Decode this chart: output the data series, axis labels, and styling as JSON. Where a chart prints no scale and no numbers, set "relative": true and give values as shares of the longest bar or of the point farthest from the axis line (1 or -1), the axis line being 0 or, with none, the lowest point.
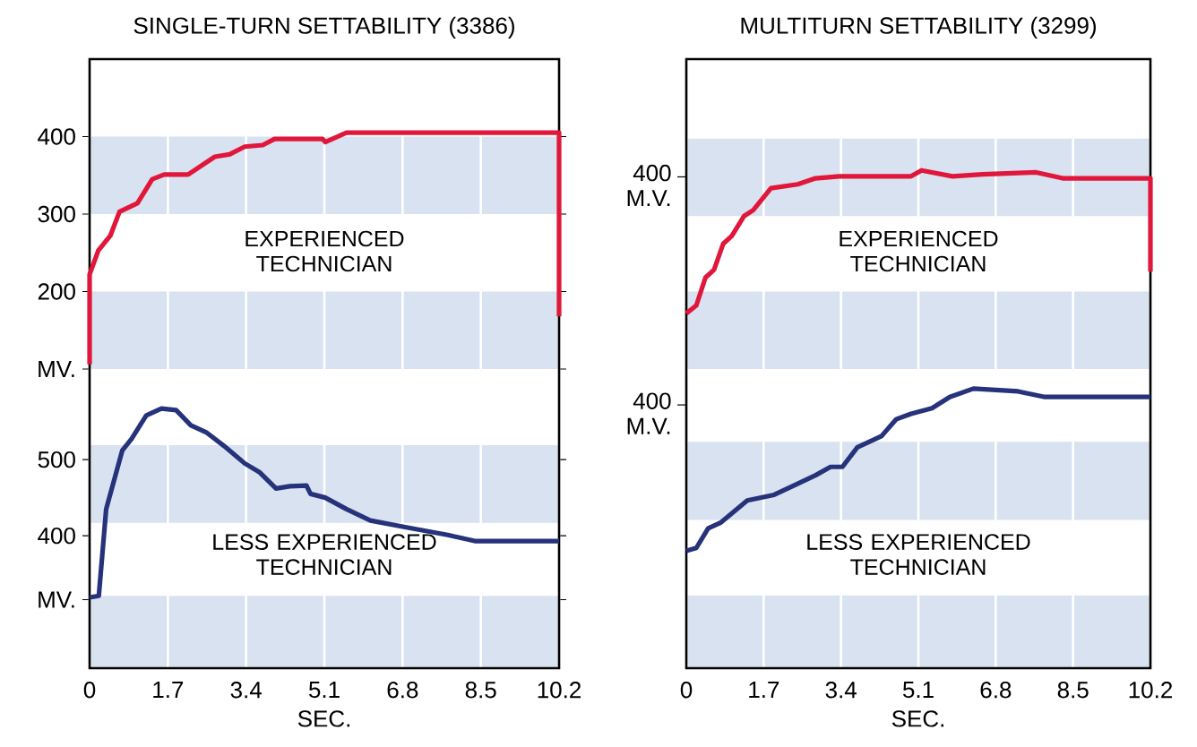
{
  "chart_data": [
    {
      "type": "line",
      "title": "SINGLE-TURN SETTABILITY (3386)",
      "x": [
        0,
        0,
        0.19,
        0.45,
        0.65,
        1.04,
        1.36,
        1.62,
        2.14,
        2.72,
        3.04,
        3.37,
        3.76,
        4.02,
        5.06,
        5.12,
        5.58,
        10.2,
        10.2
      ],
      "series": [
        {
          "color": "#e0173a",
          "values": [
            106,
            222,
            253,
            272,
            303,
            314,
            345,
            351,
            351,
            374,
            377,
            387,
            389,
            397,
            397,
            393,
            405,
            405,
            168
          ]
        }
      ],
      "xlim": [
        0,
        10.2
      ],
      "xticks": [
        0,
        1.7,
        3.4,
        5.1,
        6.8,
        8.5,
        10.2
      ],
      "ylim": [
        100,
        500
      ],
      "yticks": [
        {
          "value": 100,
          "label": "MV."
        },
        200,
        300,
        400
      ],
      "bands": [
        {
          "axis": "y",
          "from": 300,
          "to": 400,
          "color": "#d9e2f0"
        },
        {
          "axis": "y",
          "from": 100,
          "to": 200,
          "color": "#d9e2f0"
        }
      ],
      "annotations": [
        "EXPERIENCED TECHNICIAN"
      ],
      "grid": "x",
      "tick_labels": "y"
    },
    {
      "type": "line",
      "xlabel": "SEC.",
      "x": [
        0,
        0.2,
        0.36,
        0.71,
        0.91,
        1.23,
        1.56,
        1.88,
        2.2,
        2.53,
        2.92,
        3.37,
        3.7,
        4.05,
        4.35,
        4.71,
        4.8,
        5.12,
        5.58,
        6.1,
        6.88,
        7.78,
        8.37,
        10.2
      ],
      "series": [
        {
          "color": "#26327a",
          "values": [
            319,
            321,
            435,
            512,
            527,
            558,
            567,
            565,
            545,
            536,
            518,
            495,
            483,
            462,
            465,
            466,
            455,
            450,
            435,
            420,
            411,
            401,
            393,
            393
          ]
        }
      ],
      "xlim": [
        0,
        10.2
      ],
      "xticks": [
        0,
        1.7,
        3.4,
        5.1,
        6.8,
        8.5,
        10.2
      ],
      "ylim": [
        226,
        619
      ],
      "yticks": [
        {
          "value": 316,
          "label": "MV."
        },
        400,
        500
      ],
      "bands": [
        {
          "axis": "y",
          "from": 417,
          "to": 519,
          "color": "#d9e2f0"
        },
        {
          "axis": "y",
          "from": 226,
          "to": 321,
          "color": "#d9e2f0"
        }
      ],
      "annotations": [
        "LESS EXPERIENCED TECHNICIAN"
      ],
      "grid": "x"
    },
    {
      "type": "line",
      "title": "MULTITURN SETTABILITY (3299)",
      "relative": true,
      "x": [
        0,
        0.22,
        0.42,
        0.61,
        0.81,
        1.0,
        1.27,
        1.47,
        1.86,
        2.45,
        2.84,
        3.36,
        4.94,
        5.17,
        5.85,
        6.51,
        7.69,
        8.27,
        10.2,
        10.2
      ],
      "series": [
        {
          "color": "#e0173a",
          "values": [
            0.28,
            0.32,
            0.46,
            0.5,
            0.63,
            0.67,
            0.77,
            0.8,
            0.91,
            0.93,
            0.96,
            0.97,
            0.97,
            1,
            0.97,
            0.98,
            0.99,
            0.96,
            0.96,
            0.49
          ]
        }
      ],
      "xlim": [
        0,
        10.2
      ],
      "xticks": [
        0,
        1.7,
        3.4,
        5.1,
        6.8,
        8.5,
        10.2
      ],
      "bands": [
        {
          "axis": "y",
          "from": 0.77,
          "to": 1.16,
          "color": "#d9e2f0"
        },
        {
          "axis": "y",
          "from": 0,
          "to": 0.39,
          "color": "#d9e2f0"
        }
      ],
      "annotations": [
        "400 M.V.",
        "EXPERIENCED TECHNICIAN"
      ],
      "grid": "x",
      "tick_labels": false
    },
    {
      "type": "line",
      "xlabel": "SEC.",
      "relative": true,
      "x": [
        0,
        0.22,
        0.48,
        0.75,
        1.34,
        1.93,
        2.32,
        2.84,
        3.17,
        3.43,
        3.76,
        4.29,
        4.61,
        4.94,
        5.4,
        5.79,
        6.31,
        7.29,
        7.88,
        10.2
      ],
      "series": [
        {
          "color": "#26327a",
          "values": [
            0.42,
            0.43,
            0.5,
            0.52,
            0.6,
            0.62,
            0.65,
            0.69,
            0.72,
            0.72,
            0.79,
            0.83,
            0.89,
            0.91,
            0.93,
            0.97,
            1,
            0.99,
            0.97,
            0.97
          ]
        }
      ],
      "xlim": [
        0,
        10.2
      ],
      "xticks": [
        0,
        1.7,
        3.4,
        5.1,
        6.8,
        8.5,
        10.2
      ],
      "bands": [
        {
          "axis": "y",
          "from": 0.53,
          "to": 0.81,
          "color": "#d9e2f0"
        },
        {
          "axis": "y",
          "from": 0,
          "to": 0.26,
          "color": "#d9e2f0"
        }
      ],
      "annotations": [
        "400 M.V.",
        "LESS EXPERIENCED TECHNICIAN"
      ],
      "grid": "x",
      "tick_labels": "x"
    }
  ]
}
